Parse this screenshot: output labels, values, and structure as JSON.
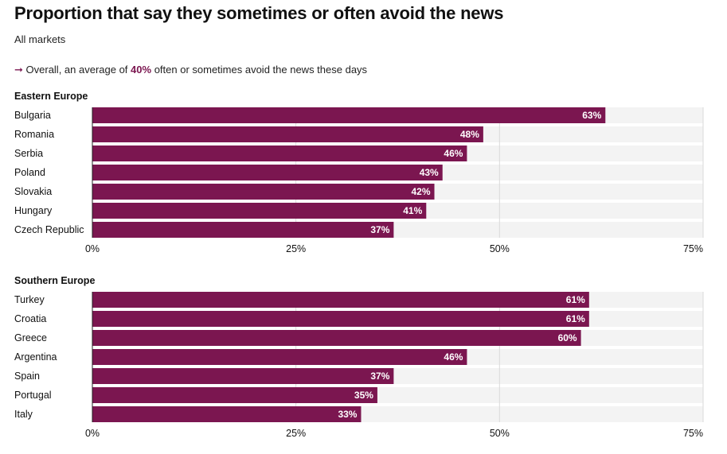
{
  "header": {
    "title": "Proportion that say they sometimes or often avoid the news",
    "subtitle": "All markets",
    "note_arrow": "➞",
    "note_prefix": " Overall, an average of ",
    "note_highlight": "40%",
    "note_suffix": " often or sometimes avoid the news these days"
  },
  "colors": {
    "bar": "#7b1650",
    "track": "#f3f3f3",
    "gridline": "#d9d9d9",
    "accent": "#7b1650"
  },
  "chart_data": [
    {
      "type": "bar",
      "orientation": "horizontal",
      "title": "Eastern Europe",
      "categories": [
        "Bulgaria",
        "Romania",
        "Serbia",
        "Poland",
        "Slovakia",
        "Hungary",
        "Czech Republic"
      ],
      "values": [
        63,
        48,
        46,
        43,
        42,
        41,
        37
      ],
      "value_labels": [
        "63%",
        "48%",
        "46%",
        "43%",
        "42%",
        "41%",
        "37%"
      ],
      "xlim": [
        0,
        75
      ],
      "xticks": [
        0,
        25,
        50,
        75
      ],
      "xtick_labels": [
        "0%",
        "25%",
        "50%",
        "75%"
      ],
      "xlabel": "",
      "ylabel": "",
      "grid": true
    },
    {
      "type": "bar",
      "orientation": "horizontal",
      "title": "Southern Europe",
      "categories": [
        "Turkey",
        "Croatia",
        "Greece",
        "Argentina",
        "Spain",
        "Portugal",
        "Italy"
      ],
      "values": [
        61,
        61,
        60,
        46,
        37,
        35,
        33
      ],
      "value_labels": [
        "61%",
        "61%",
        "60%",
        "46%",
        "37%",
        "35%",
        "33%"
      ],
      "xlim": [
        0,
        75
      ],
      "xticks": [
        0,
        25,
        50,
        75
      ],
      "xtick_labels": [
        "0%",
        "25%",
        "50%",
        "75%"
      ],
      "xlabel": "",
      "ylabel": "",
      "grid": true
    }
  ]
}
